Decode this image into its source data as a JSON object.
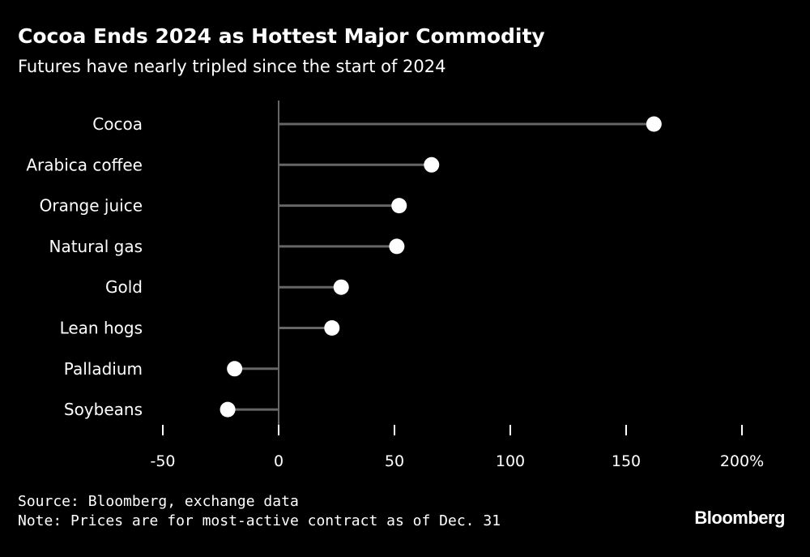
{
  "title": "Cocoa Ends 2024 as Hottest Major Commodity",
  "subtitle": "Futures have nearly tripled since the start of 2024",
  "source": "Source: Bloomberg, exchange data",
  "note": "Note: Prices are for most-active contract as of Dec. 31",
  "brand": "Bloomberg",
  "colors": {
    "background": "#000000",
    "text": "#ffffff",
    "stem": "#666666",
    "dot": "#ffffff"
  },
  "chart_data": {
    "type": "lollipop",
    "orientation": "horizontal",
    "categories": [
      "Cocoa",
      "Arabica coffee",
      "Orange juice",
      "Natural gas",
      "Gold",
      "Lean hogs",
      "Palladium",
      "Soybeans"
    ],
    "values": [
      162,
      66,
      52,
      51,
      27,
      23,
      -19,
      -22
    ],
    "xlim": [
      -50,
      200
    ],
    "xticks": [
      -50,
      0,
      50,
      100,
      150,
      200
    ],
    "xtick_labels": [
      "-50",
      "0",
      "50",
      "100",
      "150",
      "200%"
    ],
    "unit": "%",
    "grid": false,
    "legend": "none"
  }
}
